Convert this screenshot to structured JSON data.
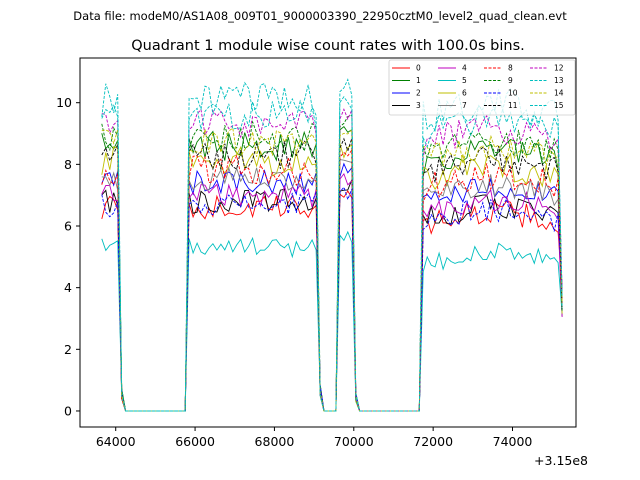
{
  "chart_data": {
    "type": "line",
    "suptitle": "Data file: modeM0/AS1A08_009T01_9000003390_22950cztM0_level2_quad_clean.evt",
    "title": "Quadrant 1 module wise count rates with 100.0s bins.",
    "xlabel": "",
    "ylabel": "",
    "x_offset_label": "+3.15e8",
    "x_offset": 315000000,
    "xlim": [
      63100,
      75600
    ],
    "ylim": [
      -0.52,
      11.45
    ],
    "xticks": [
      64000,
      66000,
      68000,
      70000,
      72000,
      74000
    ],
    "xtick_labels": [
      "64000",
      "66000",
      "68000",
      "70000",
      "72000",
      "74000"
    ],
    "yticks": [
      0,
      2,
      4,
      6,
      8,
      10
    ],
    "ytick_labels": [
      "0",
      "2",
      "4",
      "6",
      "8",
      "10"
    ],
    "grid": false,
    "legend": {
      "placement": "top-right",
      "columns": 4
    },
    "good_time_intervals": [
      {
        "start": 63650,
        "end": 64150,
        "fall_to": 0.6
      },
      {
        "start": 65850,
        "end": 69150,
        "fall_to": 0.8
      },
      {
        "start": 69650,
        "end": 70050,
        "fall_to": 0.5
      },
      {
        "start": 71750,
        "end": 75250,
        "fall_to": 3.0
      }
    ],
    "gap_value": 0,
    "series": [
      {
        "name": "0",
        "color": "#ff0000",
        "dash": "solid",
        "level": 6.6,
        "noise": 0.25
      },
      {
        "name": "1",
        "color": "#008000",
        "dash": "solid",
        "level": 8.6,
        "noise": 0.3
      },
      {
        "name": "2",
        "color": "#0000ff",
        "dash": "solid",
        "level": 7.4,
        "noise": 0.25
      },
      {
        "name": "3",
        "color": "#000000",
        "dash": "solid",
        "level": 6.8,
        "noise": 0.25
      },
      {
        "name": "4",
        "color": "#bf00bf",
        "dash": "solid",
        "level": 7.0,
        "noise": 0.25
      },
      {
        "name": "5",
        "color": "#00bfbf",
        "dash": "solid",
        "level": 5.3,
        "noise": 0.2
      },
      {
        "name": "6",
        "color": "#bfbf00",
        "dash": "solid",
        "level": 8.1,
        "noise": 0.3
      },
      {
        "name": "7",
        "color": "#808080",
        "dash": "solid",
        "level": 7.5,
        "noise": 0.25
      },
      {
        "name": "8",
        "color": "#ff0000",
        "dash": "dashed",
        "level": 7.8,
        "noise": 0.3
      },
      {
        "name": "9",
        "color": "#008000",
        "dash": "dashed",
        "level": 8.9,
        "noise": 0.3
      },
      {
        "name": "10",
        "color": "#0000ff",
        "dash": "dashed",
        "level": 6.7,
        "noise": 0.25
      },
      {
        "name": "11",
        "color": "#000000",
        "dash": "dashed",
        "level": 8.3,
        "noise": 0.3
      },
      {
        "name": "12",
        "color": "#bf00bf",
        "dash": "dashed",
        "level": 9.3,
        "noise": 0.3
      },
      {
        "name": "13",
        "color": "#00bfbf",
        "dash": "dashed",
        "level": 10.1,
        "noise": 0.35
      },
      {
        "name": "14",
        "color": "#bfbf00",
        "dash": "dashed",
        "level": 8.7,
        "noise": 0.3
      },
      {
        "name": "15",
        "color": "#00bfbf",
        "dash": "dashed",
        "level": 9.6,
        "noise": 0.3
      }
    ]
  }
}
